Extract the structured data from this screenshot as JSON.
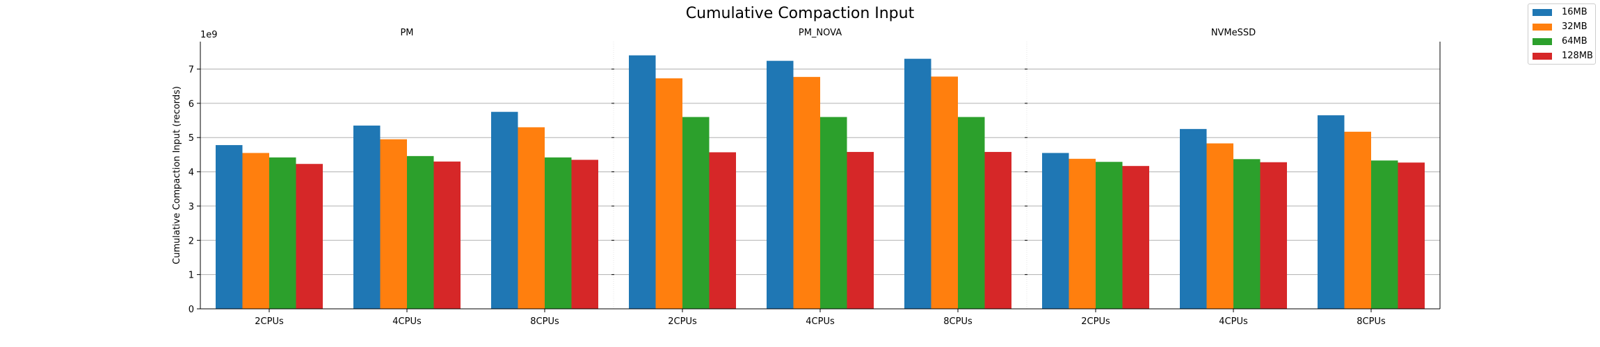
{
  "chart_data": {
    "type": "bar",
    "title": "Cumulative Compaction Input",
    "ylabel": "Cumulative Compaction Input (records)",
    "y_multiplier": "1e9",
    "ylim": [
      0,
      7.8
    ],
    "yticks": [
      0,
      1,
      2,
      3,
      4,
      5,
      6,
      7
    ],
    "grid": "horizontal",
    "legend_placement": "top-right",
    "groups": [
      "PM",
      "PM_NOVA",
      "NVMeSSD"
    ],
    "categories": [
      "2CPUs",
      "4CPUs",
      "8CPUs"
    ],
    "series": [
      {
        "name": "16MB",
        "color": "#1f77b4",
        "values": [
          [
            4.78,
            5.35,
            5.75
          ],
          [
            7.4,
            7.24,
            7.3
          ],
          [
            4.55,
            5.25,
            5.65
          ]
        ]
      },
      {
        "name": "32MB",
        "color": "#ff7f0e",
        "values": [
          [
            4.55,
            4.95,
            5.3
          ],
          [
            6.73,
            6.77,
            6.78
          ],
          [
            4.38,
            4.83,
            5.17
          ]
        ]
      },
      {
        "name": "64MB",
        "color": "#2ca02c",
        "values": [
          [
            4.42,
            4.46,
            4.42
          ],
          [
            5.6,
            5.6,
            5.6
          ],
          [
            4.29,
            4.37,
            4.33
          ]
        ]
      },
      {
        "name": "128MB",
        "color": "#d62728",
        "values": [
          [
            4.23,
            4.3,
            4.35
          ],
          [
            4.57,
            4.58,
            4.58
          ],
          [
            4.17,
            4.28,
            4.27
          ]
        ]
      }
    ]
  }
}
